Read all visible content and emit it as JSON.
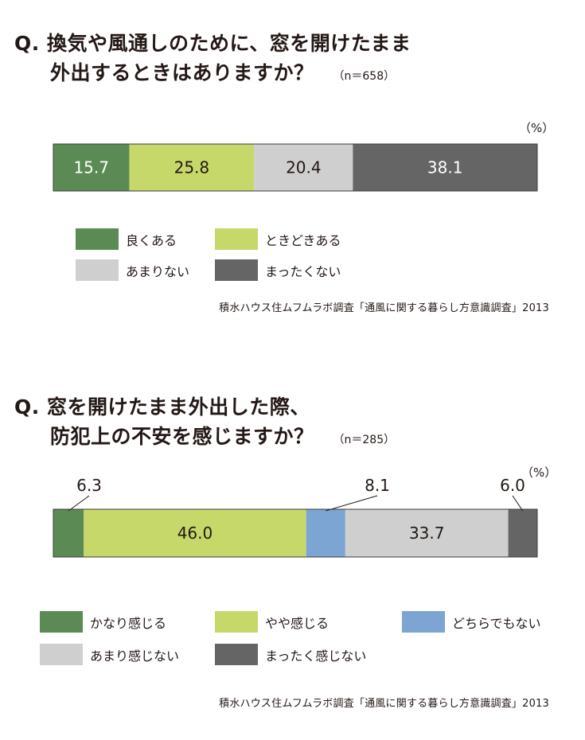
{
  "colors": {
    "dark_green": "#5c8a55",
    "yellow_green": "#c7d86a",
    "light_gray": "#cfcfcf",
    "dark_gray": "#666565",
    "blue": "#7da5d3"
  },
  "q1": {
    "prefix": "Q.",
    "line1": "換気や風通しのために、窓を開けたまま",
    "line2": "外出するときはありますか？",
    "n": "（n＝658）",
    "unit": "（%）",
    "source": "積水ハウス住ムフムラボ調査「通風に関する暮らし方意識調査」2013",
    "legend": [
      "良くある",
      "ときどきある",
      "あまりない",
      "まったくない"
    ]
  },
  "q2": {
    "prefix": "Q.",
    "line1": "窓を開けたまま外出した際、",
    "line2": "防犯上の不安を感じますか？",
    "n": "（n＝285）",
    "unit": "（%）",
    "source": "積水ハウス住ムフムラボ調査「通風に関する暮らし方意識調査」2013",
    "legend": [
      "かなり感じる",
      "やや感じる",
      "どちらでもない",
      "あまり感じない",
      "まったく感じない"
    ]
  },
  "chart_data": [
    {
      "type": "bar",
      "orientation": "horizontal-stacked-100",
      "title": "換気や風通しのために、窓を開けたまま外出するときはありますか？",
      "unit": "%",
      "categories": [
        "良くある",
        "ときどきある",
        "あまりない",
        "まったくない"
      ],
      "values": [
        15.7,
        25.8,
        20.4,
        38.1
      ],
      "labels": [
        "15.7",
        "25.8",
        "20.4",
        "38.1"
      ],
      "colors": [
        "#5c8a55",
        "#c7d86a",
        "#cfcfcf",
        "#666565"
      ]
    },
    {
      "type": "bar",
      "orientation": "horizontal-stacked-100",
      "title": "窓を開けたまま外出した際、防犯上の不安を感じますか？",
      "unit": "%",
      "categories": [
        "かなり感じる",
        "やや感じる",
        "どちらでもない",
        "あまり感じない",
        "まったく感じない"
      ],
      "values": [
        6.3,
        46.0,
        8.1,
        33.7,
        6.0
      ],
      "labels": [
        "6.3",
        "46.0",
        "8.1",
        "33.7",
        "6.0"
      ],
      "colors": [
        "#5c8a55",
        "#c7d86a",
        "#7da5d3",
        "#cfcfcf",
        "#666565"
      ]
    }
  ]
}
